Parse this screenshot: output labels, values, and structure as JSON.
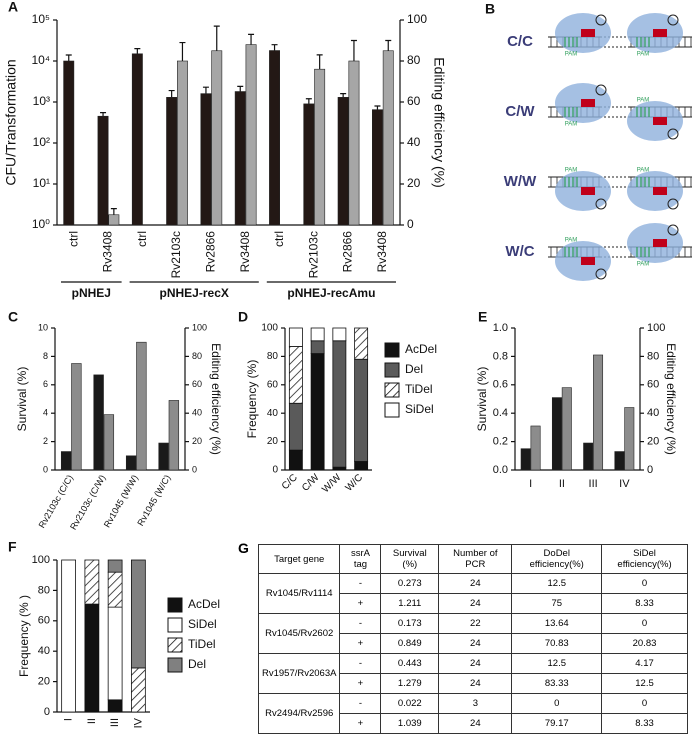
{
  "chart_data": [
    {
      "type": "bar",
      "panel": "A",
      "ylabel": "CFU/Transformation",
      "y2label": "Editing efficiency (%)",
      "log_y": true,
      "groups": [
        {
          "label": "pNHEJ",
          "categories": [
            "ctrl",
            "Rv3408"
          ]
        },
        {
          "label": "pNHEJ-recX",
          "categories": [
            "ctrl",
            "Rv2103c",
            "Rv2866",
            "Rv3408"
          ]
        },
        {
          "label": "pNHEJ-recAmu",
          "categories": [
            "ctrl",
            "Rv2103c",
            "Rv2866",
            "Rv3408"
          ]
        }
      ],
      "series": [
        {
          "color": "#231815",
          "values": [
            10000,
            450,
            15000,
            1300,
            1600,
            1800,
            18000,
            900,
            1300,
            650
          ],
          "errors": [
            4000,
            100,
            5000,
            600,
            700,
            600,
            7000,
            300,
            300,
            150
          ]
        },
        {
          "color": "#a6a6a6",
          "axis": "y2",
          "values": [
            null,
            5,
            null,
            80,
            85,
            88,
            null,
            76,
            80,
            85
          ],
          "errors": [
            null,
            3,
            null,
            9,
            12,
            5,
            null,
            7,
            10,
            5
          ]
        }
      ],
      "ylim": [
        1,
        100000
      ],
      "yticks": [
        {
          "value": 1,
          "label": "10⁰"
        },
        {
          "value": 10,
          "label": "10¹"
        },
        {
          "value": 100,
          "label": "10²"
        },
        {
          "value": 1000,
          "label": "10³"
        },
        {
          "value": 10000,
          "label": "10⁴"
        },
        {
          "value": 100000,
          "label": "10⁵"
        }
      ],
      "y2lim": [
        0,
        100
      ],
      "y2ticks": [
        0,
        20,
        40,
        60,
        80,
        100
      ]
    },
    {
      "type": "bar",
      "panel": "C",
      "ylabel": "Survival (%)",
      "y2label": "Editing efficiency (%)",
      "categories": [
        "Rv2103c (C/C)",
        "Rv2103c (C/W)",
        "Rv1045 (W/W)",
        "Rv1045 (W/C)"
      ],
      "series": [
        {
          "color": "#1a1a1a",
          "values": [
            1.3,
            6.7,
            1.0,
            1.9
          ]
        },
        {
          "color": "#8c8c8c",
          "axis": "y2",
          "values": [
            75,
            39,
            90,
            49
          ]
        }
      ],
      "ylim": [
        0,
        10
      ],
      "yticks": [
        0,
        2,
        4,
        6,
        8,
        10
      ],
      "y2lim": [
        0,
        100
      ],
      "y2ticks": [
        0,
        20,
        40,
        60,
        80,
        100
      ]
    },
    {
      "type": "stacked_bar",
      "panel": "D",
      "ylabel": "Frequency (%)",
      "categories": [
        "C/C",
        "C/W",
        "W/W",
        "W/C"
      ],
      "series": [
        {
          "name": "AcDel",
          "color": "#111111",
          "values": [
            14,
            82,
            2,
            6
          ]
        },
        {
          "name": "Del",
          "color": "#5a5a5a",
          "values": [
            33,
            9,
            89,
            72
          ]
        },
        {
          "name": "TiDel",
          "color": "#ffffff",
          "hatch": true,
          "values": [
            40,
            0,
            0,
            22
          ]
        },
        {
          "name": "SiDel",
          "color": "#ffffff",
          "values": [
            13,
            9,
            9,
            0
          ]
        }
      ],
      "ylim": [
        0,
        100
      ],
      "yticks": [
        0,
        20,
        40,
        60,
        80,
        100
      ]
    },
    {
      "type": "bar",
      "panel": "E",
      "ylabel": "Survival (%)",
      "y2label": "Editing efficiency (%)",
      "categories": [
        "I",
        "II",
        "III",
        "IV"
      ],
      "series": [
        {
          "color": "#1a1a1a",
          "values": [
            0.15,
            0.51,
            0.19,
            0.13
          ]
        },
        {
          "color": "#8c8c8c",
          "axis": "y2",
          "values": [
            31,
            58,
            81,
            44
          ]
        }
      ],
      "ylim": [
        0,
        1
      ],
      "yticks": [
        {
          "value": 0,
          "label": "0.0"
        },
        0.2,
        0.4,
        0.6,
        0.8,
        {
          "value": 1,
          "label": "1.0"
        }
      ],
      "y2lim": [
        0,
        100
      ],
      "y2ticks": [
        0,
        20,
        40,
        60,
        80,
        100
      ]
    },
    {
      "type": "stacked_bar",
      "panel": "F",
      "ylabel": "Frequency (% )",
      "categories": [
        "I",
        "II",
        "III",
        "IV"
      ],
      "series": [
        {
          "name": "AcDel",
          "color": "#111111",
          "values": [
            0,
            71,
            8,
            0
          ]
        },
        {
          "name": "SiDel",
          "color": "#ffffff",
          "values": [
            100,
            0,
            61,
            0
          ]
        },
        {
          "name": "TiDel",
          "color": "#ffffff",
          "hatch": true,
          "values": [
            0,
            29,
            23,
            29
          ]
        },
        {
          "name": "Del",
          "color": "#808080",
          "values": [
            0,
            0,
            8,
            71
          ]
        }
      ],
      "ylim": [
        0,
        100
      ],
      "yticks": [
        0,
        20,
        40,
        60,
        80,
        100
      ]
    }
  ],
  "diagram": {
    "panel": "B",
    "pam": "PAM",
    "rows": [
      {
        "label": "C/C"
      },
      {
        "label": "C/W"
      },
      {
        "label": "W/W"
      },
      {
        "label": "W/C"
      }
    ]
  },
  "table": {
    "panel": "G",
    "header": [
      "Target gene",
      "ssrA tag",
      "Survival (%)",
      "Number of PCR",
      "DoDel efficiency(%)",
      "SiDel efficiency(%)"
    ],
    "groups": [
      {
        "gene": "Rv1045/Rv1114",
        "rows": [
          [
            "-",
            "0.273",
            "24",
            "12.5",
            "0"
          ],
          [
            "+",
            "1.211",
            "24",
            "75",
            "8.33"
          ]
        ]
      },
      {
        "gene": "Rv1045/Rv2602",
        "rows": [
          [
            "-",
            "0.173",
            "22",
            "13.64",
            "0"
          ],
          [
            "+",
            "0.849",
            "24",
            "70.83",
            "20.83"
          ]
        ]
      },
      {
        "gene": "Rv1957/Rv2063A",
        "rows": [
          [
            "-",
            "0.443",
            "24",
            "12.5",
            "4.17"
          ],
          [
            "+",
            "1.279",
            "24",
            "83.33",
            "12.5"
          ]
        ]
      },
      {
        "gene": "Rv2494/Rv2596",
        "rows": [
          [
            "-",
            "0.022",
            "3",
            "0",
            "0"
          ],
          [
            "+",
            "1.039",
            "24",
            "79.17",
            "8.33"
          ]
        ]
      }
    ]
  }
}
